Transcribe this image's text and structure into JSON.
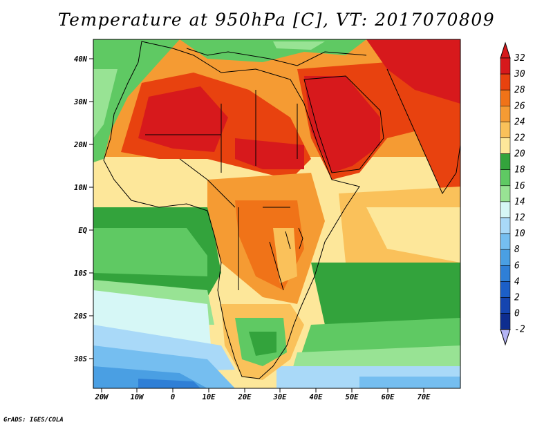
{
  "title": "Temperature at 950hPa [C], VT: 2017070809",
  "credit": "GrADS: IGES/COLA",
  "lat_ticks": [
    "40N",
    "30N",
    "20N",
    "10N",
    "EQ",
    "10S",
    "20S",
    "30S"
  ],
  "lon_ticks": [
    "20W",
    "10W",
    "0",
    "10E",
    "20E",
    "30E",
    "40E",
    "50E",
    "60E",
    "70E"
  ],
  "colorbar": {
    "labels": [
      "32",
      "30",
      "28",
      "26",
      "24",
      "22",
      "20",
      "18",
      "16",
      "14",
      "12",
      "10",
      "8",
      "6",
      "4",
      "2",
      "0",
      "-2"
    ],
    "colors": [
      "#d7191c",
      "#e8420f",
      "#f07318",
      "#f59b33",
      "#fac15a",
      "#fde79a",
      "#33a33c",
      "#5fc963",
      "#98e394",
      "#d6f7f6",
      "#a9d9f8",
      "#75bef0",
      "#4a9fe3",
      "#2f7fd6",
      "#1c5fc8",
      "#1545b0",
      "#0e2d8f",
      "#b4b4f5"
    ]
  }
}
